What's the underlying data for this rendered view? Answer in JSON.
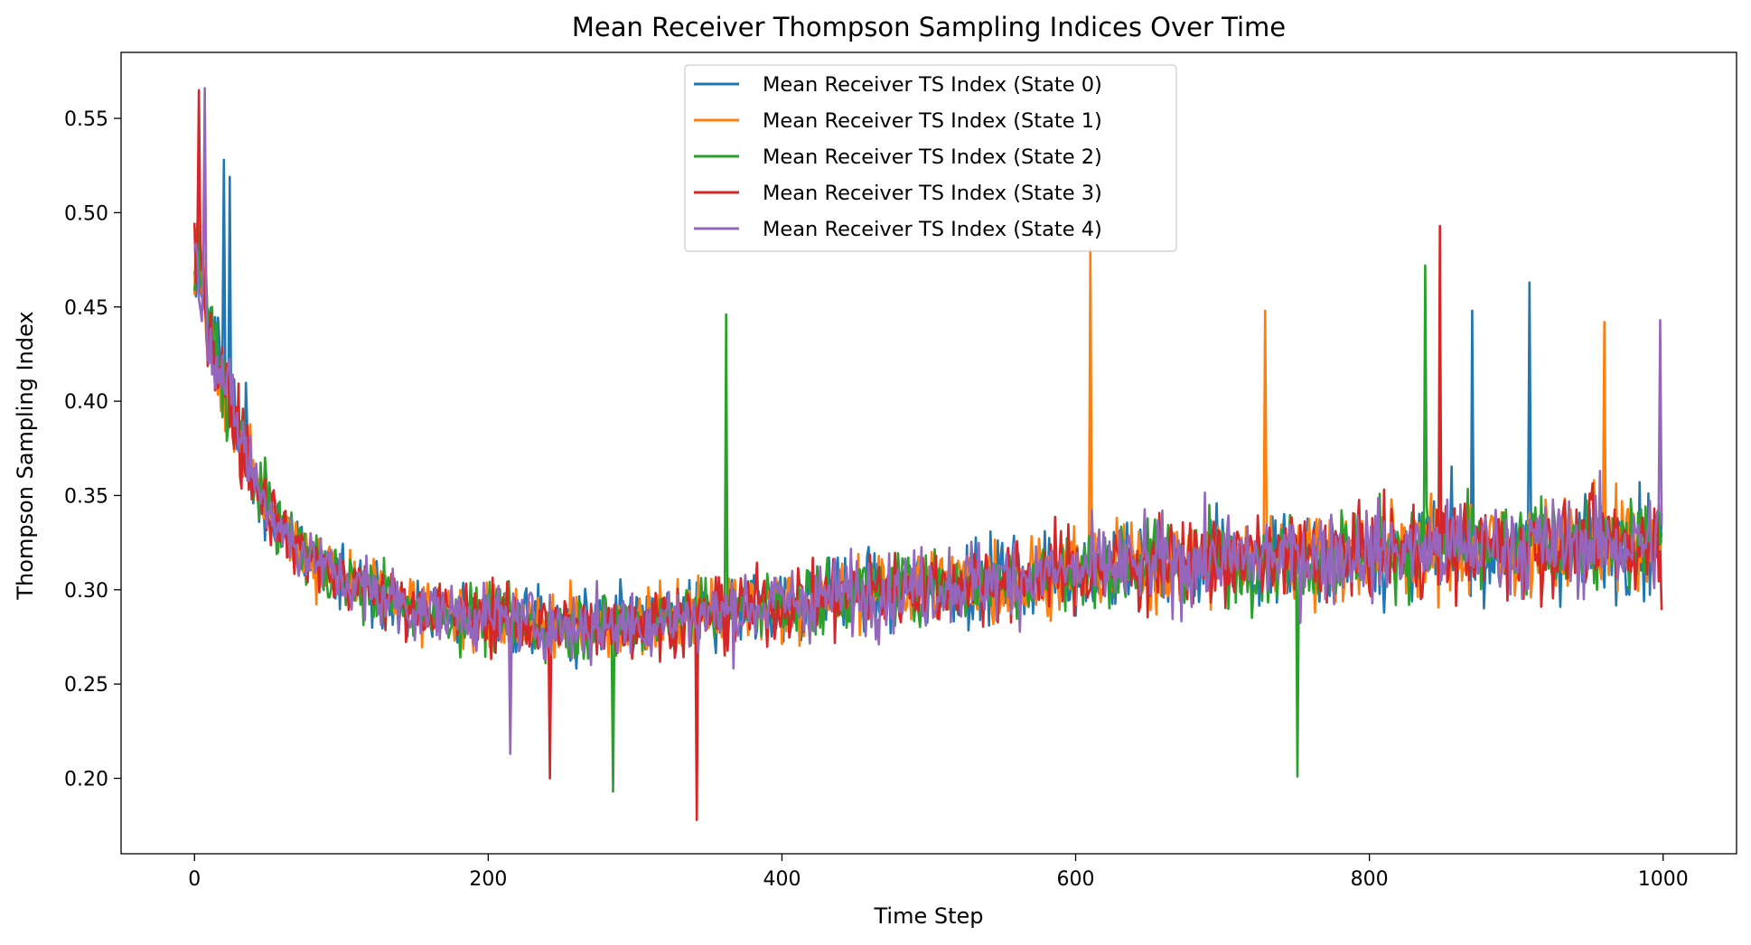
{
  "chart_data": {
    "type": "line",
    "title": "Mean Receiver Thompson Sampling Indices Over Time",
    "xlabel": "Time Step",
    "ylabel": "Thompson Sampling Index",
    "xlim": [
      -50,
      1050
    ],
    "ylim": [
      0.16,
      0.585
    ],
    "xticks": [
      0,
      200,
      400,
      600,
      800,
      1000
    ],
    "yticks": [
      0.2,
      0.25,
      0.3,
      0.35,
      0.4,
      0.45,
      0.5,
      0.55
    ],
    "xtick_labels": [
      "0",
      "200",
      "400",
      "600",
      "800",
      "1000"
    ],
    "ytick_labels": [
      "0.20",
      "0.25",
      "0.30",
      "0.35",
      "0.40",
      "0.45",
      "0.50",
      "0.55"
    ],
    "grid": false,
    "legend_position": "top-center",
    "x_range": [
      0,
      999
    ],
    "trend": {
      "x": [
        0,
        5,
        10,
        20,
        40,
        60,
        100,
        150,
        200,
        250,
        300,
        350,
        400,
        450,
        500,
        550,
        600,
        650,
        700,
        750,
        800,
        850,
        900,
        950,
        999
      ],
      "y": [
        0.47,
        0.465,
        0.44,
        0.41,
        0.36,
        0.33,
        0.305,
        0.29,
        0.285,
        0.28,
        0.282,
        0.287,
        0.293,
        0.298,
        0.302,
        0.306,
        0.31,
        0.313,
        0.316,
        0.318,
        0.32,
        0.322,
        0.323,
        0.324,
        0.325
      ]
    },
    "series": [
      {
        "name": "Mean Receiver TS Index (State 0)",
        "color": "#1f77b4",
        "extremes": {
          "x": [
            20,
            24,
            870,
            909
          ],
          "y": [
            0.528,
            0.519,
            0.448,
            0.463
          ]
        }
      },
      {
        "name": "Mean Receiver TS Index (State 1)",
        "color": "#ff7f0e",
        "extremes": {
          "x": [
            3,
            610,
            729,
            960
          ],
          "y": [
            0.548,
            0.481,
            0.448,
            0.442
          ]
        }
      },
      {
        "name": "Mean Receiver TS Index (State 2)",
        "color": "#2ca02c",
        "extremes": {
          "x": [
            362,
            285,
            751,
            838
          ],
          "y": [
            0.446,
            0.193,
            0.201,
            0.472
          ]
        }
      },
      {
        "name": "Mean Receiver TS Index (State 3)",
        "color": "#d62728",
        "extremes": {
          "x": [
            3,
            342,
            848,
            242
          ],
          "y": [
            0.565,
            0.178,
            0.493,
            0.2
          ]
        }
      },
      {
        "name": "Mean Receiver TS Index (State 4)",
        "color": "#9467bd",
        "extremes": {
          "x": [
            7,
            998,
            215
          ],
          "y": [
            0.566,
            0.443,
            0.213
          ]
        }
      }
    ]
  }
}
